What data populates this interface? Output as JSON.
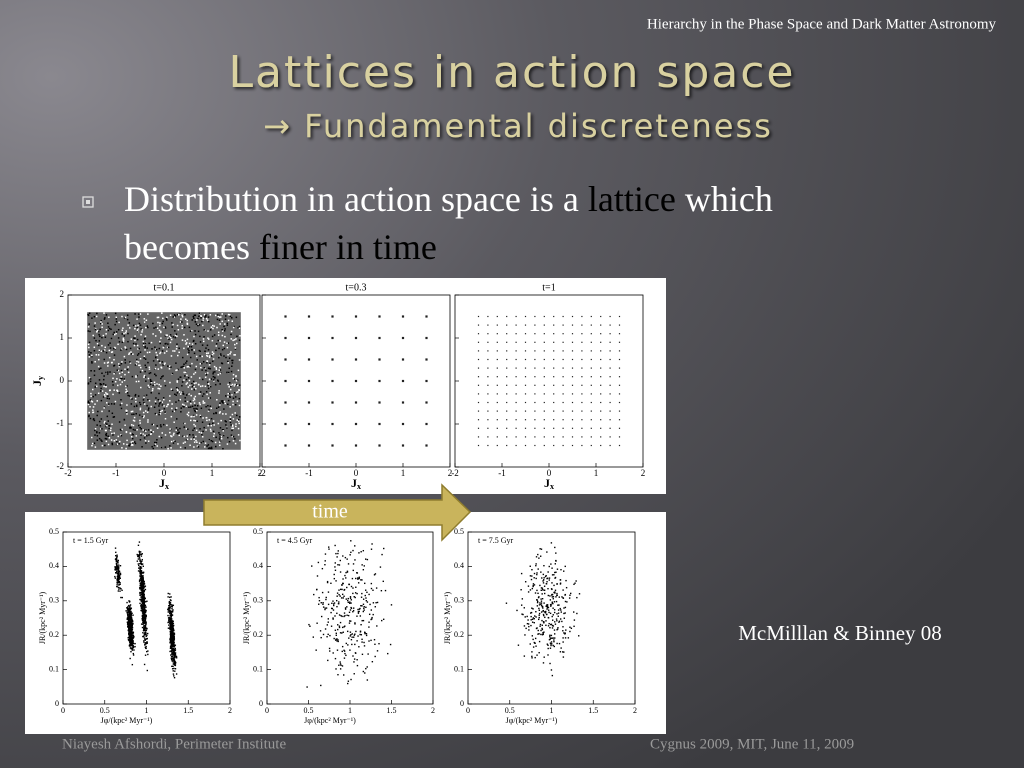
{
  "header": {
    "running_title": "Hierarchy in the Phase Space and Dark Matter Astronomy"
  },
  "title": {
    "main": "Lattices in action space",
    "sub": "→ Fundamental discreteness"
  },
  "bullet": {
    "segments": [
      {
        "text": "Distribution in action space is a ",
        "emphasis": false
      },
      {
        "text": "lattice",
        "emphasis": true
      },
      {
        "text": " which",
        "emphasis": false
      },
      {
        "text": "becomes ",
        "emphasis": false
      },
      {
        "text": "finer in time",
        "emphasis": true
      }
    ]
  },
  "figure_top": {
    "panels": [
      {
        "title": "t=0.1"
      },
      {
        "title": "t=0.3"
      },
      {
        "title": "t=1"
      }
    ],
    "x_ticks": [
      "-2",
      "-1",
      "0",
      "1",
      "2"
    ],
    "y_ticks": [
      "2",
      "1",
      "0",
      "-1",
      "-2"
    ],
    "x_label": "J",
    "x_label_sub": "x",
    "y_label": "J",
    "y_label_sub": "y"
  },
  "arrow_label": "time",
  "figure_bottom": {
    "panels": [
      {
        "title": "t = 1.5 Gyr"
      },
      {
        "title": "t = 4.5 Gyr"
      },
      {
        "title": "t = 7.5 Gyr"
      }
    ],
    "x_ticks": [
      "0",
      "0.5",
      "1",
      "1.5",
      "2"
    ],
    "y_ticks": [
      "0",
      "0.1",
      "0.2",
      "0.3",
      "0.4",
      "0.5"
    ],
    "x_label": "Jφ/(kpc² Myr⁻¹)",
    "y_label": "JR/(kpc² Myr⁻¹)"
  },
  "citation": "McMilllan & Binney 08",
  "footer": {
    "left": "Niayesh Afshordi, Perimeter Institute",
    "right": "Cygnus 2009,  MIT, June 11, 2009"
  }
}
